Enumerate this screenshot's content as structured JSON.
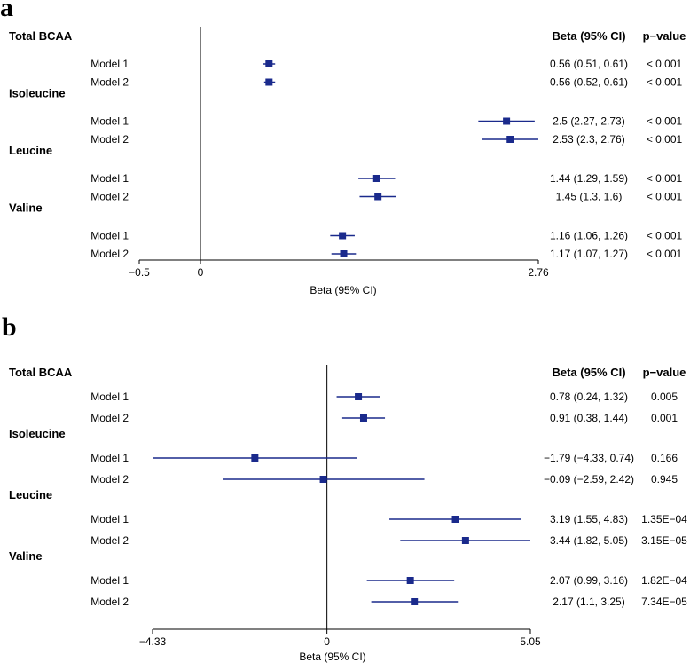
{
  "chart_data": [
    {
      "panel": "a",
      "type": "forest",
      "xlabel": "Beta (95% CI)",
      "xlim": [
        -0.5,
        2.76
      ],
      "xticks": [
        "-0.5",
        "0",
        "2.76"
      ],
      "reference_line": 0,
      "headers": {
        "beta": "Beta (95% CI)",
        "p": "p−value"
      },
      "color": "#1a2a8c",
      "groups": [
        {
          "name": "Total BCAA",
          "rows": [
            {
              "model": "Model 1",
              "beta": 0.56,
              "lower": 0.51,
              "upper": 0.61,
              "beta_text": "0.56 (0.51, 0.61)",
              "p": "< 0.001"
            },
            {
              "model": "Model 2",
              "beta": 0.56,
              "lower": 0.52,
              "upper": 0.61,
              "beta_text": "0.56 (0.52, 0.61)",
              "p": "< 0.001"
            }
          ]
        },
        {
          "name": "Isoleucine",
          "rows": [
            {
              "model": "Model 1",
              "beta": 2.5,
              "lower": 2.27,
              "upper": 2.73,
              "beta_text": "2.5 (2.27, 2.73)",
              "p": "< 0.001"
            },
            {
              "model": "Model 2",
              "beta": 2.53,
              "lower": 2.3,
              "upper": 2.76,
              "beta_text": "2.53 (2.3, 2.76)",
              "p": "< 0.001"
            }
          ]
        },
        {
          "name": "Leucine",
          "rows": [
            {
              "model": "Model 1",
              "beta": 1.44,
              "lower": 1.29,
              "upper": 1.59,
              "beta_text": "1.44 (1.29, 1.59)",
              "p": "< 0.001"
            },
            {
              "model": "Model 2",
              "beta": 1.45,
              "lower": 1.3,
              "upper": 1.6,
              "beta_text": "1.45 (1.3, 1.6)",
              "p": "< 0.001"
            }
          ]
        },
        {
          "name": "Valine",
          "rows": [
            {
              "model": "Model 1",
              "beta": 1.16,
              "lower": 1.06,
              "upper": 1.26,
              "beta_text": "1.16 (1.06, 1.26)",
              "p": "< 0.001"
            },
            {
              "model": "Model 2",
              "beta": 1.17,
              "lower": 1.07,
              "upper": 1.27,
              "beta_text": "1.17 (1.07, 1.27)",
              "p": "< 0.001"
            }
          ]
        }
      ]
    },
    {
      "panel": "b",
      "type": "forest",
      "xlabel": "Beta (95% CI)",
      "xlim": [
        -4.33,
        5.05
      ],
      "xticks": [
        "-4.33",
        "0",
        "5.05"
      ],
      "reference_line": 0,
      "headers": {
        "beta": "Beta (95% CI)",
        "p": "p−value"
      },
      "color": "#1a2a8c",
      "groups": [
        {
          "name": "Total BCAA",
          "rows": [
            {
              "model": "Model 1",
              "beta": 0.78,
              "lower": 0.24,
              "upper": 1.32,
              "beta_text": "0.78 (0.24, 1.32)",
              "p": "0.005"
            },
            {
              "model": "Model 2",
              "beta": 0.91,
              "lower": 0.38,
              "upper": 1.44,
              "beta_text": "0.91 (0.38, 1.44)",
              "p": "0.001"
            }
          ]
        },
        {
          "name": "Isoleucine",
          "rows": [
            {
              "model": "Model 1",
              "beta": -1.79,
              "lower": -4.33,
              "upper": 0.74,
              "beta_text": "−1.79 (−4.33, 0.74)",
              "p": "0.166"
            },
            {
              "model": "Model 2",
              "beta": -0.09,
              "lower": -2.59,
              "upper": 2.42,
              "beta_text": "−0.09 (−2.59, 2.42)",
              "p": "0.945"
            }
          ]
        },
        {
          "name": "Leucine",
          "rows": [
            {
              "model": "Model 1",
              "beta": 3.19,
              "lower": 1.55,
              "upper": 4.83,
              "beta_text": "3.19 (1.55, 4.83)",
              "p": "1.35E−04"
            },
            {
              "model": "Model 2",
              "beta": 3.44,
              "lower": 1.82,
              "upper": 5.05,
              "beta_text": "3.44 (1.82, 5.05)",
              "p": "3.15E−05"
            }
          ]
        },
        {
          "name": "Valine",
          "rows": [
            {
              "model": "Model 1",
              "beta": 2.07,
              "lower": 0.99,
              "upper": 3.16,
              "beta_text": "2.07 (0.99, 3.16)",
              "p": "1.82E−04"
            },
            {
              "model": "Model 2",
              "beta": 2.17,
              "lower": 1.1,
              "upper": 3.25,
              "beta_text": "2.17 (1.1, 3.25)",
              "p": "7.34E−05"
            }
          ]
        }
      ]
    }
  ],
  "panel_labels": {
    "a": "a",
    "b": "b"
  }
}
